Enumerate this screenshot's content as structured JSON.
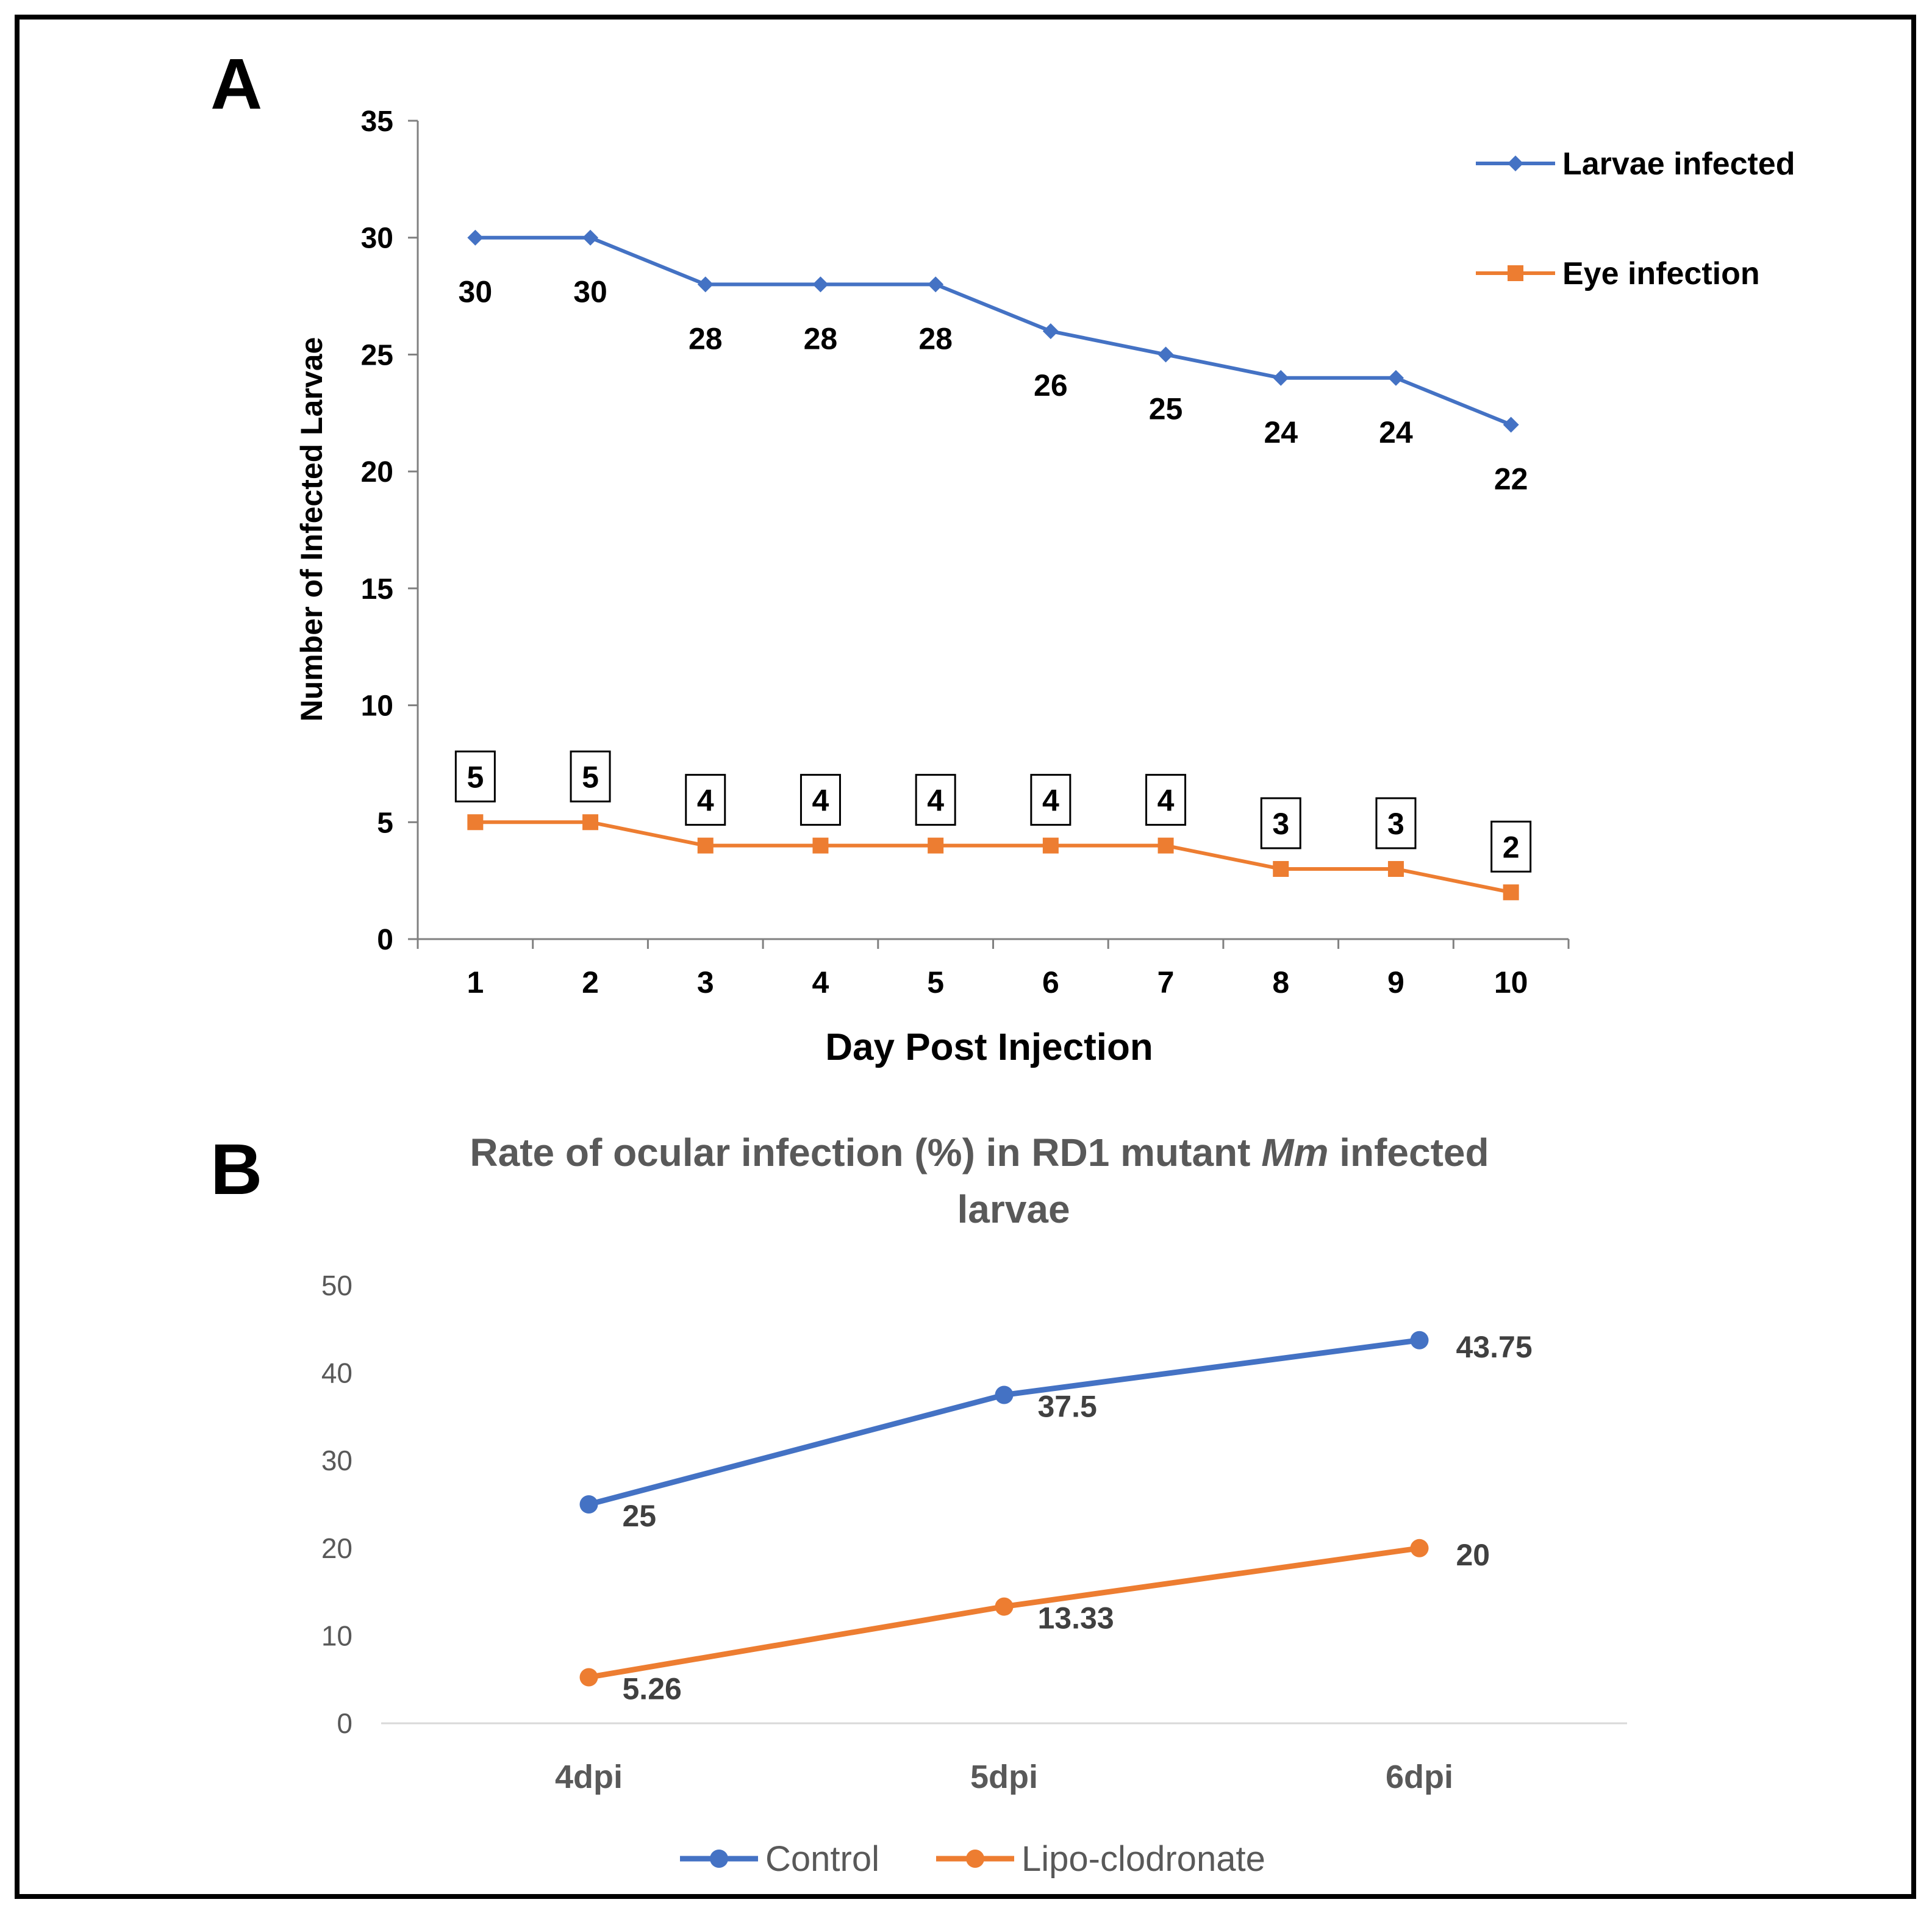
{
  "panel_a_label": "A",
  "panel_b_label": "B",
  "chart_data": [
    {
      "type": "line",
      "title": "",
      "xlabel": "Day Post Injection",
      "ylabel": "Number of Infected Larvae",
      "categories": [
        "1",
        "2",
        "3",
        "4",
        "5",
        "6",
        "7",
        "8",
        "9",
        "10"
      ],
      "yticks": [
        "0",
        "5",
        "10",
        "15",
        "20",
        "25",
        "30",
        "35"
      ],
      "ylim": [
        0,
        35
      ],
      "grid": false,
      "legend_position": "top-right",
      "series": [
        {
          "name": "Larvae infected",
          "values": [
            30,
            30,
            28,
            28,
            28,
            26,
            25,
            24,
            24,
            22
          ],
          "labels": [
            "30",
            "30",
            "28",
            "28",
            "28",
            "26",
            "25",
            "24",
            "24",
            "22"
          ],
          "color": "#4472C4",
          "marker": "diamond",
          "label_style": "below"
        },
        {
          "name": "Eye infection",
          "values": [
            5,
            5,
            4,
            4,
            4,
            4,
            4,
            3,
            3,
            2
          ],
          "labels": [
            "5",
            "5",
            "4",
            "4",
            "4",
            "4",
            "4",
            "3",
            "3",
            "2"
          ],
          "color": "#ED7D31",
          "marker": "square",
          "label_style": "boxed-above"
        }
      ]
    },
    {
      "type": "line",
      "title_parts": [
        "Rate of ocular infection (%) in RD1 mutant ",
        "Mm",
        " infected"
      ],
      "title_line2": "larvae",
      "xlabel": "",
      "ylabel": "",
      "categories": [
        "4dpi",
        "5dpi",
        "6dpi"
      ],
      "yticks": [
        "0",
        "10",
        "20",
        "30",
        "40",
        "50"
      ],
      "ylim": [
        0,
        50
      ],
      "grid": false,
      "legend_position": "bottom",
      "series": [
        {
          "name": "Control",
          "values": [
            25,
            37.5,
            43.75
          ],
          "labels": [
            "25",
            "37.5",
            "43.75"
          ],
          "color": "#4472C4",
          "marker": "circle"
        },
        {
          "name": "Lipo-clodronate",
          "values": [
            5.26,
            13.33,
            20
          ],
          "labels": [
            "5.26",
            "13.33",
            "20"
          ],
          "color": "#ED7D31",
          "marker": "circle"
        }
      ]
    }
  ]
}
